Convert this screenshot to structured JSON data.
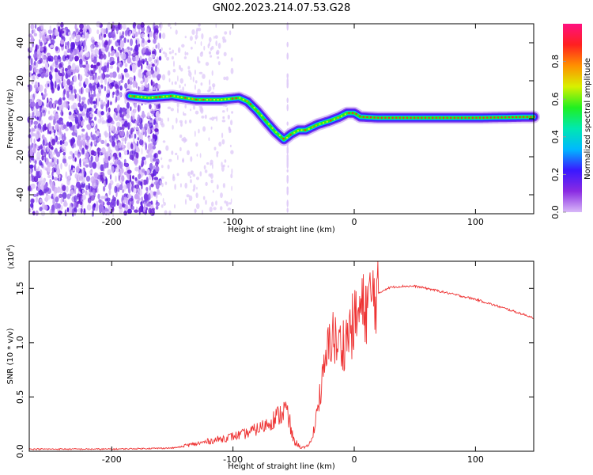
{
  "title": "GN02.2023.214.07.53.G28",
  "chart_data": [
    {
      "type": "heatmap",
      "name": "spectrogram",
      "xlabel": "Height of straight line (km)",
      "ylabel": "Frequency (Hz)",
      "xlim": [
        -268,
        148
      ],
      "ylim": [
        -50,
        50
      ],
      "xticks": [
        -200,
        -100,
        0,
        100
      ],
      "xtick_labels": [
        "-200",
        "-100",
        "0",
        "100"
      ],
      "yticks": [
        -40,
        -20,
        0,
        20,
        40
      ],
      "ytick_labels": [
        "-40",
        "-20",
        "0",
        "20",
        "40"
      ],
      "colorbar": {
        "label": "Normalized spectral amplitude",
        "range": [
          0.0,
          1.0
        ],
        "ticks": [
          0.0,
          0.2,
          0.4,
          0.6,
          0.8
        ],
        "tick_labels": [
          "0.0",
          "0.2",
          "0.4",
          "0.6",
          "0.8"
        ],
        "colors": [
          "#d8b8f8",
          "#8a2be2",
          "#3a18ff",
          "#00b8ff",
          "#00e8b0",
          "#20f020",
          "#d8f000",
          "#ff9000",
          "#ff2020",
          "#ff1080"
        ]
      },
      "ridge": {
        "x": [
          -185,
          -170,
          -150,
          -130,
          -110,
          -95,
          -88,
          -80,
          -72,
          -65,
          -58,
          -52,
          -46,
          -40,
          -30,
          -20,
          -12,
          -6,
          0,
          5,
          20,
          60,
          100,
          148
        ],
        "freq": [
          12,
          11,
          12,
          10,
          10,
          11,
          9,
          4,
          -2,
          -7,
          -11,
          -8,
          -6,
          -6,
          -3,
          -1,
          1,
          3,
          3,
          1,
          0.5,
          0.5,
          0.5,
          1
        ]
      }
    },
    {
      "type": "line",
      "name": "snr",
      "xlabel": "Height of straight line (km)",
      "ylabel": "SNR (10 * v/v)",
      "multiplier_label": "(x10",
      "multiplier_exp": "4",
      "xlim": [
        -268,
        148
      ],
      "ylim": [
        0,
        1.75
      ],
      "xticks": [
        -200,
        -100,
        0,
        100
      ],
      "xtick_labels": [
        "-200",
        "-100",
        "0",
        "100"
      ],
      "yticks": [
        0.0,
        0.5,
        1.0,
        1.5
      ],
      "ytick_labels": [
        "0.0",
        "0.5",
        "1.0",
        "1.5"
      ],
      "color": "#ee3333",
      "envelope": {
        "x": [
          -268,
          -200,
          -150,
          -130,
          -110,
          -90,
          -75,
          -65,
          -58,
          -55,
          -50,
          -45,
          -40,
          -35,
          -30,
          -25,
          -20,
          -18,
          -15,
          -10,
          -5,
          0,
          5,
          10,
          15,
          20,
          25,
          30,
          40,
          50,
          60,
          80,
          100,
          120,
          148
        ],
        "y": [
          0.02,
          0.02,
          0.03,
          0.06,
          0.1,
          0.14,
          0.2,
          0.27,
          0.32,
          0.28,
          0.08,
          0.04,
          0.03,
          0.1,
          0.4,
          0.7,
          1.0,
          1.08,
          0.95,
          0.95,
          1.05,
          1.15,
          1.25,
          1.3,
          1.38,
          1.45,
          1.49,
          1.51,
          1.52,
          1.52,
          1.5,
          1.45,
          1.4,
          1.33,
          1.23
        ]
      }
    }
  ]
}
